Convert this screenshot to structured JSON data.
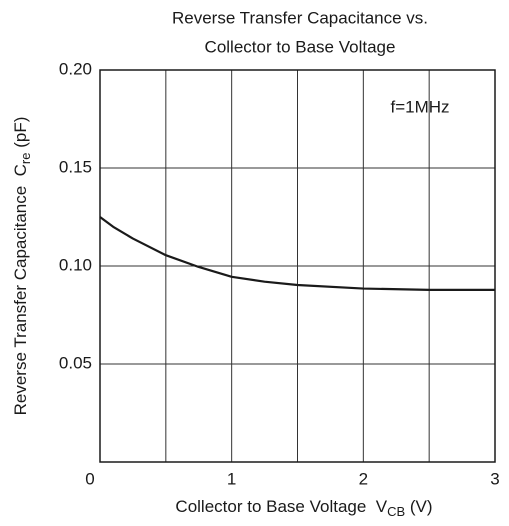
{
  "chart_data": {
    "type": "line",
    "title": [
      "Reverse Transfer Capacitance vs.",
      "Collector to Base Voltage"
    ],
    "x_label": {
      "text": "Collector to Base Voltage  V",
      "sub": "CB",
      "unit": " (V)"
    },
    "y_label": {
      "text": "Reverse Transfer Capacitance  C",
      "sub": "re",
      "unit": " (pF)"
    },
    "annotation": "f=1MHz",
    "x": [
      0,
      0.1,
      0.25,
      0.5,
      0.75,
      1.0,
      1.25,
      1.5,
      2.0,
      2.5,
      3.0
    ],
    "values": [
      0.125,
      0.12,
      0.114,
      0.1055,
      0.0995,
      0.0945,
      0.092,
      0.0903,
      0.0885,
      0.0878,
      0.0878
    ],
    "color": "#1a1a1a",
    "xlim": [
      0,
      3
    ],
    "ylim": [
      0,
      0.2
    ],
    "xticks": [
      0,
      1,
      2,
      3
    ],
    "xgrid": [
      0.5,
      1,
      1.5,
      2,
      2.5
    ],
    "yticks": [
      0.05,
      {
        "value": 0.1,
        "label": "0.10"
      },
      0.15,
      {
        "value": 0.2,
        "label": "0.20"
      }
    ],
    "grid": true
  }
}
